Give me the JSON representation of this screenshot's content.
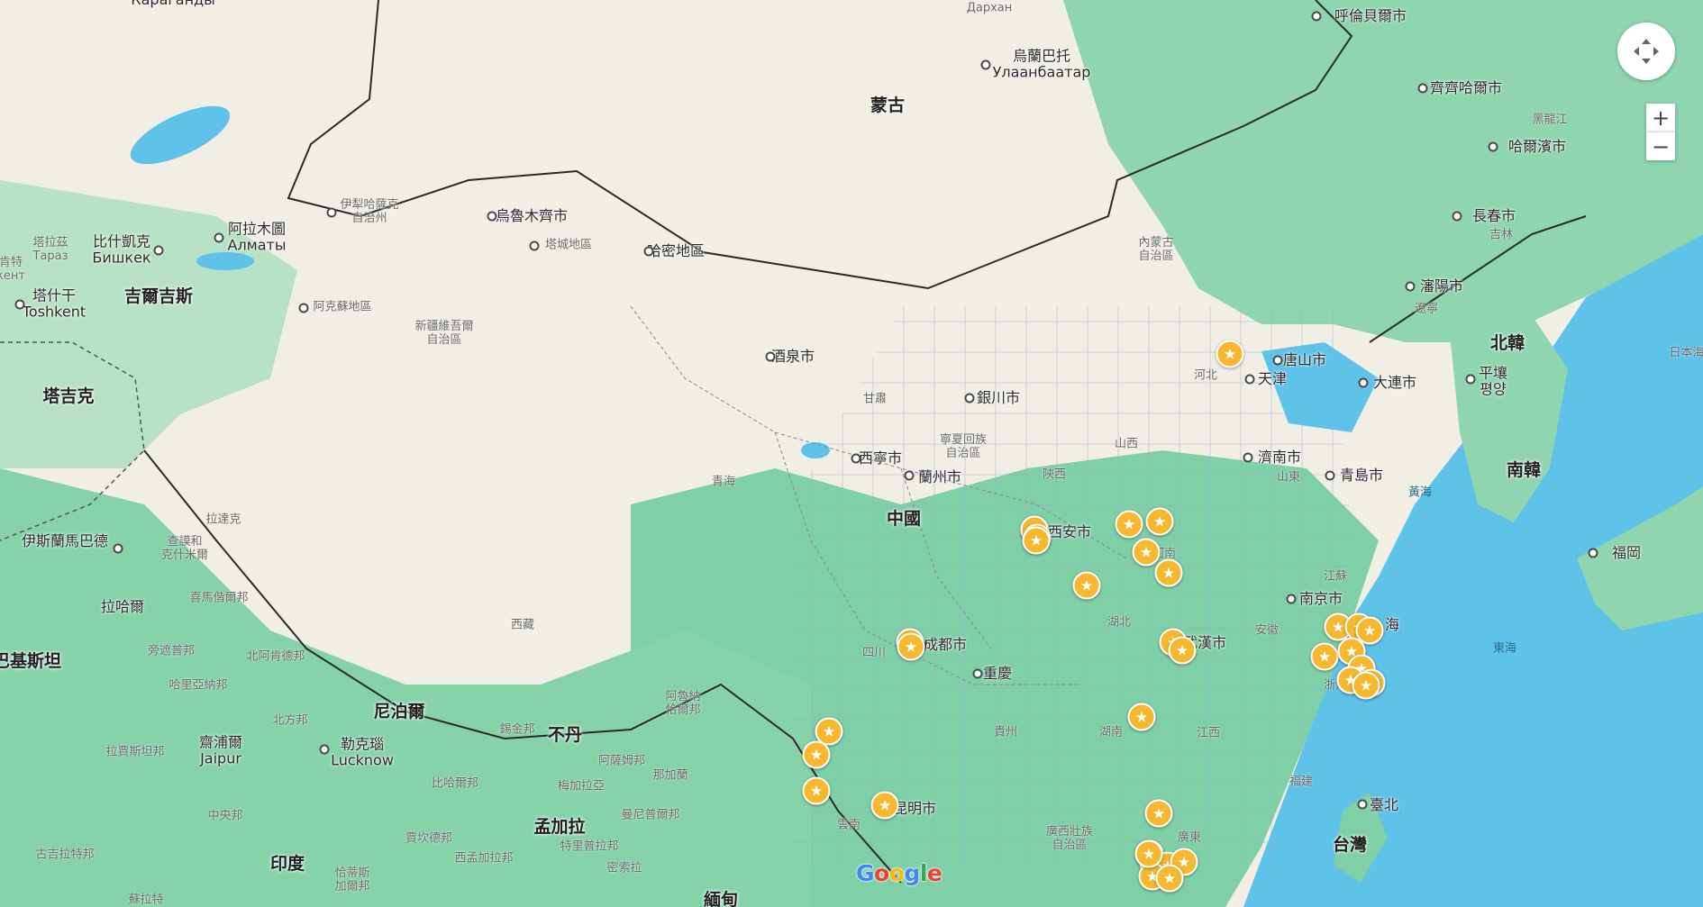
{
  "map": {
    "colors": {
      "water": "#5fc2e8",
      "desert": "#f1eee5",
      "forest": "#7fd0a7",
      "border": "#2a2a2a",
      "marker": "#f5b82e"
    },
    "labels": [
      {
        "id": "mongolia",
        "text": "蒙古",
        "kind": "c"
      },
      {
        "id": "china",
        "text": "中國",
        "kind": "c"
      },
      {
        "id": "north-korea",
        "text": "北韓",
        "kind": "c"
      },
      {
        "id": "south-korea",
        "text": "南韓",
        "kind": "c"
      },
      {
        "id": "kyrgyzstan",
        "text": "吉爾吉斯",
        "kind": "c"
      },
      {
        "id": "tajikistan",
        "text": "塔吉克",
        "kind": "c"
      },
      {
        "id": "nepal",
        "text": "尼泊爾",
        "kind": "c"
      },
      {
        "id": "bhutan",
        "text": "不丹",
        "kind": "c"
      },
      {
        "id": "bangladesh",
        "text": "孟加拉",
        "kind": "c"
      },
      {
        "id": "india",
        "text": "印度",
        "kind": "c"
      },
      {
        "id": "taiwan",
        "text": "台灣",
        "kind": "c"
      },
      {
        "id": "pakistan",
        "text": "巴基斯坦",
        "kind": "c"
      },
      {
        "id": "myanmar",
        "text": "緬甸",
        "kind": "c"
      },
      {
        "id": "karaganda",
        "text": "Караганды",
        "kind": "city"
      },
      {
        "id": "hulunbuir",
        "text": "呼倫貝爾市",
        "kind": "city"
      },
      {
        "id": "ulaanbaatar",
        "text": "烏蘭巴托\nУлаанбаатар",
        "kind": "city"
      },
      {
        "id": "darkhan",
        "text": "Дархан",
        "kind": "prov"
      },
      {
        "id": "qiqihar",
        "text": "齊齊哈爾市",
        "kind": "city"
      },
      {
        "id": "harbin",
        "text": "哈爾濱市",
        "kind": "city"
      },
      {
        "id": "changchun",
        "text": "長春市",
        "kind": "city"
      },
      {
        "id": "shenyang",
        "text": "瀋陽市",
        "kind": "city"
      },
      {
        "id": "tangshan",
        "text": "唐山市",
        "kind": "city"
      },
      {
        "id": "tianjin",
        "text": "天津",
        "kind": "city"
      },
      {
        "id": "dalian",
        "text": "大連市",
        "kind": "city"
      },
      {
        "id": "pyongyang",
        "text": "平壤\n평양",
        "kind": "city"
      },
      {
        "id": "jinan",
        "text": "濟南市",
        "kind": "city"
      },
      {
        "id": "qingdao",
        "text": "青島市",
        "kind": "city"
      },
      {
        "id": "yinchuan",
        "text": "銀川市",
        "kind": "city"
      },
      {
        "id": "xining",
        "text": "西寧市",
        "kind": "city"
      },
      {
        "id": "lanzhou",
        "text": "蘭州市",
        "kind": "city"
      },
      {
        "id": "xian",
        "text": "西安市",
        "kind": "city"
      },
      {
        "id": "chengdu",
        "text": "成都市",
        "kind": "city"
      },
      {
        "id": "chongqing",
        "text": "重慶",
        "kind": "city"
      },
      {
        "id": "wuhan",
        "text": "武漢市",
        "kind": "city"
      },
      {
        "id": "nanjing",
        "text": "南京市",
        "kind": "city"
      },
      {
        "id": "shanghai-part",
        "text": "海",
        "kind": "city"
      },
      {
        "id": "kunming",
        "text": "昆明市",
        "kind": "city"
      },
      {
        "id": "taipei",
        "text": "臺北",
        "kind": "city"
      },
      {
        "id": "fukuoka",
        "text": "福岡",
        "kind": "city"
      },
      {
        "id": "jiuquan",
        "text": "酒泉市",
        "kind": "city"
      },
      {
        "id": "urumqi",
        "text": "烏魯木齊市",
        "kind": "city"
      },
      {
        "id": "tacheng",
        "text": "塔城地區",
        "kind": "prov"
      },
      {
        "id": "hami",
        "text": "哈密地區",
        "kind": "city"
      },
      {
        "id": "yili",
        "text": "伊犁哈薩克\n自治州",
        "kind": "prov"
      },
      {
        "id": "bishkek",
        "text": "比什凱克\nБишкек",
        "kind": "city"
      },
      {
        "id": "almaty",
        "text": "阿拉木圖\nАлматы",
        "kind": "city"
      },
      {
        "id": "taraz",
        "text": "塔拉茲\nТараз",
        "kind": "prov"
      },
      {
        "id": "tashkent",
        "text": "塔什干\nToshkent",
        "kind": "city"
      },
      {
        "id": "aksu",
        "text": "阿克蘇地區",
        "kind": "prov"
      },
      {
        "id": "islamabad",
        "text": "伊斯蘭馬巴德",
        "kind": "city"
      },
      {
        "id": "lahore",
        "text": "拉哈爾",
        "kind": "city"
      },
      {
        "id": "lucknow",
        "text": "勒克瑙\nLucknow",
        "kind": "city"
      },
      {
        "id": "jaipur",
        "text": "齋浦爾\nJaipur",
        "kind": "city"
      },
      {
        "id": "inner-mongolia",
        "text": "內蒙古\n自治區",
        "kind": "prov"
      },
      {
        "id": "hebei",
        "text": "河北",
        "kind": "prov"
      },
      {
        "id": "shanxi",
        "text": "山西",
        "kind": "prov"
      },
      {
        "id": "shaanxi",
        "text": "陝西",
        "kind": "prov"
      },
      {
        "id": "gansu",
        "text": "甘肅",
        "kind": "prov"
      },
      {
        "id": "ningxia",
        "text": "寧夏回族\n自治區",
        "kind": "prov"
      },
      {
        "id": "qinghai",
        "text": "青海",
        "kind": "prov"
      },
      {
        "id": "xinjiang",
        "text": "新疆維吾爾\n自治區",
        "kind": "prov"
      },
      {
        "id": "tibet",
        "text": "西藏",
        "kind": "prov"
      },
      {
        "id": "sichuan",
        "text": "四川",
        "kind": "prov"
      },
      {
        "id": "henan",
        "text": "河南",
        "kind": "prov"
      },
      {
        "id": "hubei",
        "text": "湖北",
        "kind": "prov"
      },
      {
        "id": "hunan",
        "text": "湖南",
        "kind": "prov"
      },
      {
        "id": "guizhou",
        "text": "貴州",
        "kind": "prov"
      },
      {
        "id": "yunnan",
        "text": "雲南",
        "kind": "prov"
      },
      {
        "id": "guangxi",
        "text": "廣西壯族\n自治區",
        "kind": "prov"
      },
      {
        "id": "guangdong",
        "text": "廣東",
        "kind": "prov"
      },
      {
        "id": "jiangxi",
        "text": "江西",
        "kind": "prov"
      },
      {
        "id": "fujian",
        "text": "福建",
        "kind": "prov"
      },
      {
        "id": "zhejiang",
        "text": "浙江",
        "kind": "prov"
      },
      {
        "id": "anhui",
        "text": "安徽",
        "kind": "prov"
      },
      {
        "id": "jiangsu",
        "text": "江蘇",
        "kind": "prov"
      },
      {
        "id": "shandong",
        "text": "山東",
        "kind": "prov"
      },
      {
        "id": "liaoning",
        "text": "遼寧",
        "kind": "prov"
      },
      {
        "id": "jilin",
        "text": "吉林",
        "kind": "prov"
      },
      {
        "id": "heilongjiang",
        "text": "黑龍江",
        "kind": "prov"
      },
      {
        "id": "japan-part",
        "text": "日本海",
        "kind": "prov"
      },
      {
        "id": "ladakh",
        "text": "拉達克",
        "kind": "prov"
      },
      {
        "id": "kashmir",
        "text": "查謨和\n克什米爾",
        "kind": "prov"
      },
      {
        "id": "himachal",
        "text": "喜馬偕爾邦",
        "kind": "prov"
      },
      {
        "id": "punjab",
        "text": "旁遮普邦",
        "kind": "prov"
      },
      {
        "id": "uttarakhand",
        "text": "北阿肯德邦",
        "kind": "prov"
      },
      {
        "id": "haryana",
        "text": "哈里亞納邦",
        "kind": "prov"
      },
      {
        "id": "uttar-pradesh",
        "text": "北方邦",
        "kind": "prov"
      },
      {
        "id": "rajasthan",
        "text": "拉賈斯坦邦",
        "kind": "prov"
      },
      {
        "id": "bihar",
        "text": "比哈爾邦",
        "kind": "prov"
      },
      {
        "id": "sikkim",
        "text": "錫金邦",
        "kind": "prov"
      },
      {
        "id": "arunachal",
        "text": "阿魯納\n恰爾邦",
        "kind": "prov"
      },
      {
        "id": "assam",
        "text": "阿薩姆邦",
        "kind": "prov"
      },
      {
        "id": "meghalaya",
        "text": "梅加拉亞",
        "kind": "prov"
      },
      {
        "id": "nagaland",
        "text": "那加蘭",
        "kind": "prov"
      },
      {
        "id": "manipur",
        "text": "曼尼普爾邦",
        "kind": "prov"
      },
      {
        "id": "madhya",
        "text": "中央邦",
        "kind": "prov"
      },
      {
        "id": "jharkhand",
        "text": "賈坎德邦",
        "kind": "prov"
      },
      {
        "id": "west-bengal",
        "text": "西孟加拉邦",
        "kind": "prov"
      },
      {
        "id": "tripura",
        "text": "特里普拉邦",
        "kind": "prov"
      },
      {
        "id": "mizoram",
        "text": "密索拉",
        "kind": "prov"
      },
      {
        "id": "gujarat",
        "text": "古吉拉特邦",
        "kind": "prov"
      },
      {
        "id": "chhattisgarh",
        "text": "恰蒂斯\n加爾邦",
        "kind": "prov"
      },
      {
        "id": "odisha",
        "text": "蘇拉特",
        "kind": "prov"
      },
      {
        "id": "kent-part",
        "text": "肯特\nкент",
        "kind": "prov"
      },
      {
        "id": "yellow-sea",
        "text": "黃海",
        "kind": "sea"
      },
      {
        "id": "east-china-sea",
        "text": "東海",
        "kind": "sea"
      }
    ],
    "city_dots": [
      "ulaanbaatar",
      "hulunbuir",
      "qiqihar",
      "harbin",
      "changchun",
      "shenyang",
      "tianjin",
      "tangshan",
      "dalian",
      "pyongyang",
      "jinan",
      "qingdao",
      "yinchuan",
      "xining",
      "lanzhou",
      "xian",
      "chengdu",
      "chongqing",
      "wuhan",
      "nanjing",
      "kunming",
      "taipei",
      "fukuoka",
      "jiuquan",
      "urumqi",
      "tacheng",
      "hami",
      "yili",
      "almaty",
      "bishkek",
      "tashkent",
      "aksu",
      "islamabad",
      "lucknow"
    ],
    "markers": [
      "m1",
      "m2",
      "m3",
      "m4",
      "m5",
      "m6",
      "m7",
      "m8",
      "m9",
      "m10",
      "m11",
      "m12",
      "m13",
      "m14",
      "m15",
      "m16",
      "m17",
      "m18",
      "m19",
      "m20",
      "m21",
      "m22",
      "m23",
      "m24",
      "m25",
      "m26",
      "m27",
      "m28",
      "m29",
      "m30",
      "m31",
      "m32",
      "m33",
      "m34",
      "m35"
    ],
    "controls": {
      "zoom_in": "+",
      "zoom_out": "−",
      "fullscreen_icon": "fullscreen-icon"
    },
    "attribution": "Google"
  }
}
